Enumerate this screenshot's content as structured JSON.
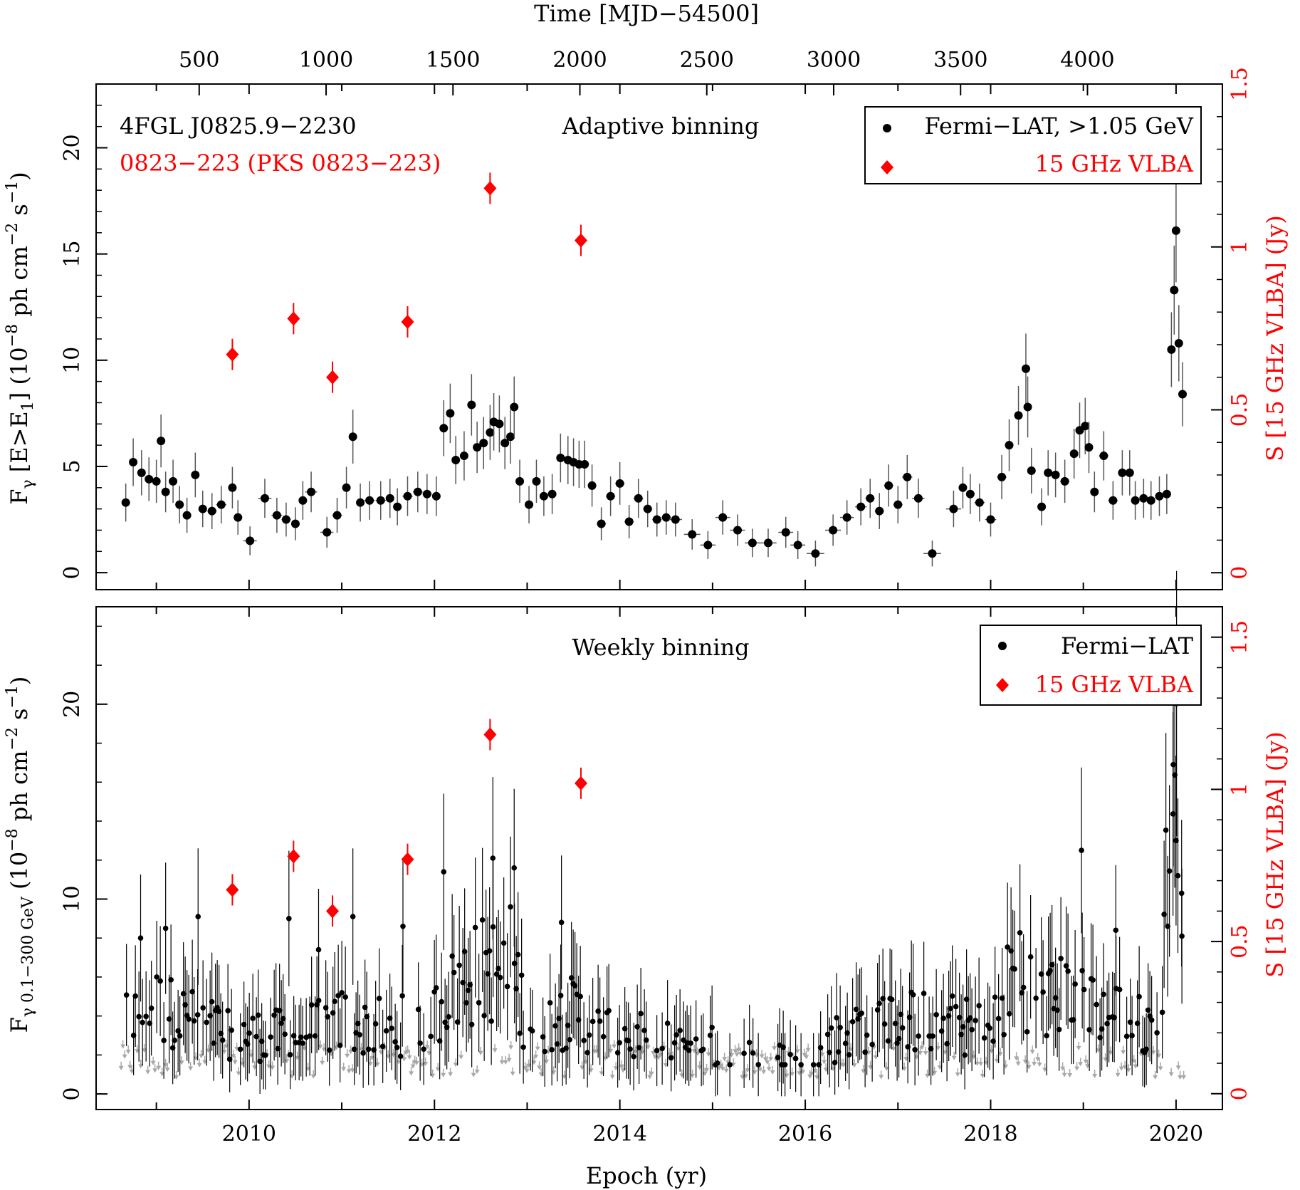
{
  "colors": {
    "fermi": "#000000",
    "vlba": "#ff0000",
    "upper_limit": "#a8a8a8",
    "axis": "#000000"
  },
  "chart_data": [
    {
      "type": "scatter",
      "panel": "top",
      "panel_title": "Adaptive binning",
      "source_name": "4FGL J0825.9−2230",
      "radio_name": "0823−223 (PKS 0823−223)",
      "top_axis_label": "Time [MJD−54500]",
      "top_axis_ticks": [
        "500",
        "1000",
        "1500",
        "2000",
        "2500",
        "3000",
        "3500",
        "4000"
      ],
      "xlabel": "Epoch (yr)",
      "ylabel_main": "F",
      "ylabel_sub": "γ",
      "ylabel_rest_1": " [E>E",
      "ylabel_rest_sub": "1",
      "ylabel_rest_2": "] (10",
      "ylabel_exp1": "−8",
      "ylabel_rest_3": " ph cm",
      "ylabel_exp2": "−2",
      "ylabel_rest_4": " s",
      "ylabel_exp3": "−1",
      "ylabel_rest_5": ")",
      "y2label": "S [15 GHz VLBA] (Jy)",
      "xlim": [
        2008.35,
        2020.5
      ],
      "ylim": [
        -0.8,
        23
      ],
      "y2lim": [
        -0.052,
        1.5
      ],
      "y_ticks": [
        "0",
        "5",
        "10",
        "15",
        "20"
      ],
      "y2_ticks": [
        "0",
        "0.5",
        "1",
        "1.5"
      ],
      "legend": {
        "position": "top-right",
        "entries": [
          "Fermi−LAT, >1.05 GeV",
          "15 GHz VLBA"
        ]
      },
      "series": [
        {
          "name": "Fermi−LAT, >1.05 GeV",
          "points": [
            [
              2008.67,
              3.3
            ],
            [
              2008.75,
              5.2
            ],
            [
              2008.84,
              4.7
            ],
            [
              2008.92,
              4.4
            ],
            [
              2009.0,
              4.3
            ],
            [
              2009.05,
              6.2
            ],
            [
              2009.1,
              3.8
            ],
            [
              2009.18,
              4.3
            ],
            [
              2009.25,
              3.2
            ],
            [
              2009.33,
              2.7
            ],
            [
              2009.42,
              4.6
            ],
            [
              2009.5,
              3.0
            ],
            [
              2009.6,
              2.9
            ],
            [
              2009.7,
              3.2
            ],
            [
              2009.82,
              4.0
            ],
            [
              2009.88,
              2.6
            ],
            [
              2010.01,
              1.5
            ],
            [
              2010.17,
              3.5
            ],
            [
              2010.3,
              2.7
            ],
            [
              2010.4,
              2.5
            ],
            [
              2010.5,
              2.3
            ],
            [
              2010.58,
              3.4
            ],
            [
              2010.67,
              3.8
            ],
            [
              2010.84,
              1.9
            ],
            [
              2010.95,
              2.7
            ],
            [
              2011.05,
              4.0
            ],
            [
              2011.12,
              6.4
            ],
            [
              2011.2,
              3.3
            ],
            [
              2011.3,
              3.4
            ],
            [
              2011.42,
              3.4
            ],
            [
              2011.52,
              3.5
            ],
            [
              2011.6,
              3.1
            ],
            [
              2011.71,
              3.6
            ],
            [
              2011.82,
              3.8
            ],
            [
              2011.92,
              3.7
            ],
            [
              2012.02,
              3.6
            ],
            [
              2012.1,
              6.8
            ],
            [
              2012.17,
              7.5
            ],
            [
              2012.23,
              5.3
            ],
            [
              2012.32,
              5.5
            ],
            [
              2012.4,
              7.9
            ],
            [
              2012.46,
              5.9
            ],
            [
              2012.53,
              6.1
            ],
            [
              2012.6,
              6.6
            ],
            [
              2012.64,
              7.1
            ],
            [
              2012.7,
              7.0
            ],
            [
              2012.76,
              6.1
            ],
            [
              2012.82,
              6.4
            ],
            [
              2012.86,
              7.8
            ],
            [
              2012.92,
              4.3
            ],
            [
              2013.02,
              3.2
            ],
            [
              2013.1,
              4.3
            ],
            [
              2013.18,
              3.6
            ],
            [
              2013.27,
              3.7
            ],
            [
              2013.36,
              5.4
            ],
            [
              2013.44,
              5.3
            ],
            [
              2013.5,
              5.2
            ],
            [
              2013.56,
              5.1
            ],
            [
              2013.62,
              5.1
            ],
            [
              2013.7,
              4.1
            ],
            [
              2013.8,
              2.3
            ],
            [
              2013.9,
              3.6
            ],
            [
              2014.0,
              4.2
            ],
            [
              2014.1,
              2.4
            ],
            [
              2014.2,
              3.5
            ],
            [
              2014.3,
              3.0
            ],
            [
              2014.4,
              2.5
            ],
            [
              2014.5,
              2.6
            ],
            [
              2014.6,
              2.5
            ],
            [
              2014.78,
              1.8
            ],
            [
              2014.95,
              1.3
            ],
            [
              2015.11,
              2.6
            ],
            [
              2015.27,
              2.0
            ],
            [
              2015.43,
              1.4
            ],
            [
              2015.6,
              1.4
            ],
            [
              2015.79,
              1.9
            ],
            [
              2015.92,
              1.3
            ],
            [
              2016.11,
              0.9
            ],
            [
              2016.3,
              2.0
            ],
            [
              2016.45,
              2.6
            ],
            [
              2016.6,
              3.1
            ],
            [
              2016.7,
              3.5
            ],
            [
              2016.8,
              2.9
            ],
            [
              2016.9,
              4.1
            ],
            [
              2017.0,
              3.2
            ],
            [
              2017.1,
              4.5
            ],
            [
              2017.22,
              3.5
            ],
            [
              2017.37,
              0.9
            ],
            [
              2017.6,
              3.0
            ],
            [
              2017.7,
              4.0
            ],
            [
              2017.78,
              3.7
            ],
            [
              2017.88,
              3.3
            ],
            [
              2018.0,
              2.5
            ],
            [
              2018.12,
              4.5
            ],
            [
              2018.2,
              6.0
            ],
            [
              2018.3,
              7.4
            ],
            [
              2018.38,
              9.6
            ],
            [
              2018.4,
              7.8
            ],
            [
              2018.44,
              4.8
            ],
            [
              2018.55,
              3.1
            ],
            [
              2018.62,
              4.7
            ],
            [
              2018.7,
              4.6
            ],
            [
              2018.8,
              4.3
            ],
            [
              2018.9,
              5.6
            ],
            [
              2018.96,
              6.7
            ],
            [
              2019.02,
              6.9
            ],
            [
              2019.06,
              5.9
            ],
            [
              2019.12,
              3.8
            ],
            [
              2019.22,
              5.5
            ],
            [
              2019.32,
              3.4
            ],
            [
              2019.42,
              4.7
            ],
            [
              2019.5,
              4.7
            ],
            [
              2019.56,
              3.4
            ],
            [
              2019.65,
              3.5
            ],
            [
              2019.73,
              3.4
            ],
            [
              2019.82,
              3.6
            ],
            [
              2019.9,
              3.7
            ],
            [
              2019.95,
              10.5
            ],
            [
              2019.98,
              13.3
            ],
            [
              2020.0,
              16.1
            ],
            [
              2020.03,
              10.8
            ],
            [
              2020.07,
              8.4
            ]
          ]
        },
        {
          "name": "15 GHz VLBA",
          "points": [
            [
              2009.82,
              0.67
            ],
            [
              2010.48,
              0.78
            ],
            [
              2010.9,
              0.6
            ],
            [
              2011.71,
              0.77
            ],
            [
              2012.6,
              1.18
            ],
            [
              2013.58,
              1.02
            ]
          ]
        }
      ]
    },
    {
      "type": "scatter",
      "panel": "bottom",
      "panel_title": "Weekly binning",
      "xlabel": "Epoch (yr)",
      "x_ticks": [
        "2010",
        "2012",
        "2014",
        "2016",
        "2018",
        "2020"
      ],
      "ylabel_main": "F",
      "ylabel_sub": "γ 0.1−300 GeV",
      "ylabel_rest_1": " (10",
      "ylabel_exp1": "−8",
      "ylabel_rest_2": " ph cm",
      "ylabel_exp2": "−2",
      "ylabel_rest_3": " s",
      "ylabel_exp3": "−1",
      "ylabel_rest_4": ")",
      "y2label": "S [15 GHz VLBA] (Jy)",
      "xlim": [
        2008.35,
        2020.5
      ],
      "ylim": [
        -0.8,
        25
      ],
      "y2lim": [
        -0.052,
        1.6
      ],
      "y_ticks": [
        "0",
        "10",
        "20"
      ],
      "y2_ticks": [
        "0",
        "0.5",
        "1",
        "1.5"
      ],
      "legend": {
        "position": "top-right",
        "entries": [
          "Fermi−LAT",
          "15 GHz VLBA"
        ]
      },
      "series": [
        {
          "name": "Fermi−LAT",
          "sampled_weekly": {
            "start": 2008.62,
            "end": 2020.1,
            "step": 0.0192
          },
          "profile": [
            [
              2008.6,
              3.6
            ],
            [
              2009.0,
              4.5
            ],
            [
              2009.5,
              3.5
            ],
            [
              2010.0,
              3.0
            ],
            [
              2010.5,
              3.0
            ],
            [
              2011.0,
              3.8
            ],
            [
              2011.5,
              3.3
            ],
            [
              2012.0,
              4.0
            ],
            [
              2012.3,
              5.8
            ],
            [
              2012.6,
              6.5
            ],
            [
              2012.9,
              5.5
            ],
            [
              2013.0,
              3.5
            ],
            [
              2013.5,
              4.2
            ],
            [
              2013.8,
              3.2
            ],
            [
              2014.3,
              2.8
            ],
            [
              2015.0,
              2.4
            ],
            [
              2015.5,
              2.0
            ],
            [
              2016.0,
              1.6
            ],
            [
              2016.5,
              3.5
            ],
            [
              2017.0,
              4.0
            ],
            [
              2017.5,
              3.6
            ],
            [
              2018.0,
              3.2
            ],
            [
              2018.3,
              6.8
            ],
            [
              2018.5,
              4.6
            ],
            [
              2019.0,
              5.2
            ],
            [
              2019.5,
              3.6
            ],
            [
              2019.8,
              3.4
            ],
            [
              2019.9,
              10.5
            ],
            [
              2020.0,
              15.0
            ],
            [
              2020.1,
              8.0
            ]
          ],
          "highlights": [
            [
              2008.83,
              8.0
            ],
            [
              2009.45,
              9.1
            ],
            [
              2009.1,
              8.5
            ],
            [
              2010.43,
              9.0
            ],
            [
              2010.75,
              7.4
            ],
            [
              2011.12,
              9.1
            ],
            [
              2011.66,
              8.6
            ],
            [
              2012.1,
              11.4
            ],
            [
              2012.63,
              12.1
            ],
            [
              2012.86,
              11.6
            ],
            [
              2012.82,
              9.6
            ],
            [
              2013.37,
              8.8
            ],
            [
              2018.98,
              12.5
            ],
            [
              2019.35,
              8.4
            ],
            [
              2019.97,
              16.9
            ],
            [
              2020.0,
              13.0
            ],
            [
              2020.02,
              11.2
            ],
            [
              2020.06,
              10.3
            ]
          ]
        },
        {
          "name": "15 GHz VLBA",
          "points": [
            [
              2009.82,
              0.67
            ],
            [
              2010.48,
              0.78
            ],
            [
              2010.9,
              0.6
            ],
            [
              2011.71,
              0.77
            ],
            [
              2012.6,
              1.18
            ],
            [
              2013.58,
              1.02
            ]
          ]
        }
      ]
    }
  ]
}
